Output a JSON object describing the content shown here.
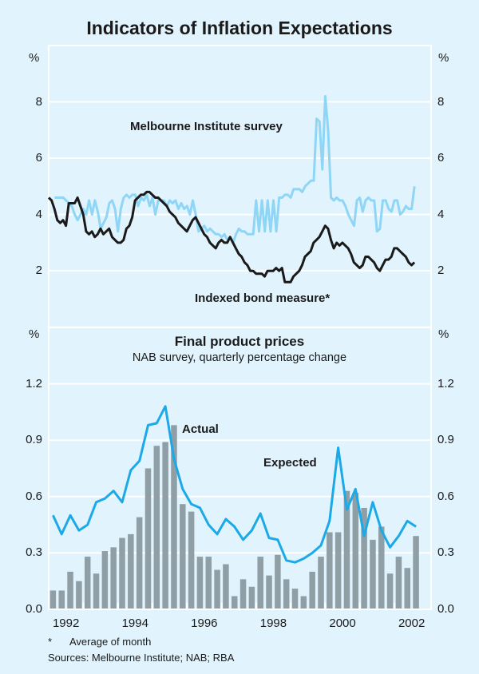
{
  "title": "Indicators of Inflation Expectations",
  "colors": {
    "background": "#e1f3fd",
    "gridline": "#ffffff",
    "melbourne": "#8fd6f6",
    "bond": "#1a1a1a",
    "expected": "#1ba9e8",
    "actual_bars": "#909ea5"
  },
  "footnotes": {
    "asterisk": "*",
    "asterisk_text": "Average of month",
    "sources": "Sources: Melbourne Institute; NAB; RBA"
  },
  "chart_data": [
    {
      "type": "line",
      "panel": "top",
      "title": "",
      "ylabel_left": "%",
      "ylabel_right": "%",
      "ylim": [
        0,
        10
      ],
      "yticks": [
        2,
        4,
        6,
        8
      ],
      "ytick_labels": [
        "2",
        "4",
        "6",
        "8"
      ],
      "grid": true,
      "annotations": [
        "Melbourne Institute survey",
        "Indexed bond measure*"
      ],
      "series": [
        {
          "name": "Melbourne Institute survey",
          "start": 1992.17,
          "step_years": 0.0833,
          "values": [
            4.6,
            4.6,
            4.6,
            4.6,
            4.5,
            4.4,
            4.3,
            4.0,
            3.8,
            4.0,
            4.2,
            4.0,
            4.5,
            4.0,
            4.5,
            4.1,
            3.5,
            3.7,
            3.9,
            4.4,
            4.5,
            4.2,
            3.4,
            4.2,
            4.6,
            4.7,
            4.6,
            4.7,
            4.7,
            4.3,
            4.6,
            4.5,
            4.7,
            4.3,
            4.6,
            4.0,
            4.5,
            4.5,
            4.5,
            4.3,
            4.5,
            4.4,
            4.5,
            4.2,
            4.4,
            4.2,
            4.3,
            4.0,
            4.5,
            4.0,
            3.4,
            3.5,
            3.6,
            3.4,
            3.5,
            3.4,
            3.3,
            3.3,
            3.2,
            3.3,
            3.1,
            3.2,
            3.0,
            3.3,
            3.5,
            3.4,
            3.4,
            3.3,
            3.3,
            3.3,
            4.5,
            3.4,
            4.5,
            3.4,
            4.5,
            3.4,
            4.5,
            3.4,
            4.6,
            4.6,
            4.7,
            4.7,
            4.6,
            4.9,
            4.9,
            4.9,
            4.8,
            5.0,
            5.1,
            5.2,
            5.2,
            7.4,
            7.3,
            5.6,
            8.2,
            7.0,
            4.6,
            4.5,
            4.6,
            4.5,
            4.5,
            4.3,
            4.0,
            3.8,
            3.6,
            4.5,
            4.6,
            4.1,
            4.5,
            4.6,
            4.5,
            4.5,
            3.4,
            3.5,
            4.5,
            4.5,
            4.2,
            4.1,
            4.5,
            4.5,
            4.0,
            4.1,
            4.3,
            4.2,
            4.2,
            5.0
          ]
        },
        {
          "name": "Indexed bond measure*",
          "start": 1992.0,
          "step_years": 0.0833,
          "values": [
            4.6,
            4.5,
            4.2,
            3.8,
            3.7,
            3.8,
            3.6,
            4.4,
            4.4,
            4.4,
            4.6,
            4.3,
            4.0,
            3.4,
            3.3,
            3.4,
            3.2,
            3.3,
            3.5,
            3.3,
            3.4,
            3.5,
            3.2,
            3.1,
            3.0,
            3.0,
            3.1,
            3.5,
            3.6,
            3.9,
            4.5,
            4.6,
            4.7,
            4.7,
            4.8,
            4.8,
            4.7,
            4.6,
            4.6,
            4.5,
            4.4,
            4.3,
            4.1,
            4.0,
            3.9,
            3.7,
            3.6,
            3.5,
            3.4,
            3.6,
            3.8,
            3.9,
            3.7,
            3.5,
            3.3,
            3.2,
            3.0,
            2.9,
            2.8,
            3.0,
            3.1,
            3.0,
            3.0,
            3.2,
            3.0,
            2.8,
            2.6,
            2.5,
            2.3,
            2.2,
            2.0,
            2.0,
            1.9,
            1.9,
            1.9,
            1.8,
            2.0,
            2.0,
            2.0,
            2.1,
            2.0,
            2.1,
            1.6,
            1.6,
            1.6,
            1.8,
            1.9,
            2.0,
            2.2,
            2.5,
            2.6,
            2.7,
            3.0,
            3.1,
            3.2,
            3.4,
            3.6,
            3.5,
            3.1,
            2.8,
            3.0,
            2.9,
            3.0,
            2.9,
            2.8,
            2.6,
            2.3,
            2.2,
            2.1,
            2.2,
            2.5,
            2.5,
            2.4,
            2.3,
            2.1,
            2.0,
            2.2,
            2.4,
            2.4,
            2.5,
            2.8,
            2.8,
            2.7,
            2.6,
            2.5,
            2.3,
            2.2,
            2.3
          ]
        }
      ]
    },
    {
      "type": "bar+line",
      "panel": "bottom",
      "title": "Final product prices",
      "subtitle": "NAB survey, quarterly percentage change",
      "ylabel_left": "%",
      "ylabel_right": "%",
      "ylim": [
        0,
        1.5
      ],
      "yticks": [
        0.0,
        0.3,
        0.6,
        0.9,
        1.2
      ],
      "ytick_labels": [
        "0.0",
        "0.3",
        "0.6",
        "0.9",
        "1.2"
      ],
      "xlim": [
        1992.0,
        2003.0
      ],
      "xtick_labels": [
        "1992",
        "1994",
        "1996",
        "1998",
        "2000",
        "2002"
      ],
      "grid": true,
      "annotations": [
        "Actual",
        "Expected"
      ],
      "categories_start": "1992Q1",
      "series": [
        {
          "name": "Actual",
          "type": "bar",
          "values": [
            0.1,
            0.1,
            0.2,
            0.15,
            0.28,
            0.19,
            0.31,
            0.33,
            0.38,
            0.4,
            0.49,
            0.75,
            0.87,
            0.89,
            0.98,
            0.56,
            0.52,
            0.28,
            0.28,
            0.21,
            0.24,
            0.07,
            0.16,
            0.12,
            0.28,
            0.18,
            0.29,
            0.16,
            0.11,
            0.07,
            0.2,
            0.28,
            0.41,
            0.41,
            0.63,
            0.62,
            0.54,
            0.37,
            0.44,
            0.19,
            0.28,
            0.22,
            0.39
          ]
        },
        {
          "name": "Expected",
          "type": "line",
          "values": [
            0.5,
            0.4,
            0.5,
            0.42,
            0.45,
            0.57,
            0.59,
            0.63,
            0.57,
            0.74,
            0.79,
            0.98,
            0.99,
            1.08,
            0.8,
            0.64,
            0.56,
            0.54,
            0.45,
            0.4,
            0.48,
            0.44,
            0.37,
            0.42,
            0.51,
            0.38,
            0.37,
            0.26,
            0.25,
            0.27,
            0.3,
            0.34,
            0.47,
            0.86,
            0.53,
            0.64,
            0.39,
            0.57,
            0.42,
            0.33,
            0.39,
            0.47,
            0.44
          ]
        }
      ]
    }
  ]
}
